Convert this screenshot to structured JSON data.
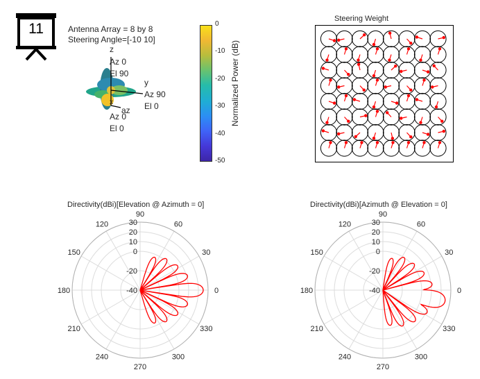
{
  "badge": {
    "number": "11"
  },
  "array_info": {
    "line1": "Antenna Array = 8 by 8",
    "line2": "Steering Angle=[-10 10]"
  },
  "pattern3d": {
    "z_label": "z",
    "z_az": "Az 0",
    "z_el": "El 90",
    "y_label": "y",
    "y_az": "Az 90",
    "y_el": "El 0",
    "x_label": "x",
    "x_az": "Az 0",
    "x_el": "El 0",
    "az_label": "az"
  },
  "colorbar": {
    "label": "Normalized Power (dB)",
    "ticks": [
      "0",
      "-10",
      "-20",
      "-30",
      "-40",
      "-50"
    ],
    "colors": [
      "#3d26a8",
      "#4538d8",
      "#3f63f7",
      "#2c8ef4",
      "#1fadd5",
      "#26bcaa",
      "#69c26f",
      "#b7bd3d",
      "#f0b833",
      "#f9e01a"
    ]
  },
  "steering": {
    "title": "Steering Weight",
    "rows": 8,
    "cols": 8,
    "circle_color": "#000000",
    "vector_color": "#ff0000"
  },
  "chart_data": [
    {
      "type": "polar",
      "title": "Directivity(dBi)[Elevation @ Azimuth = 0]",
      "angle_ticks": [
        "0",
        "30",
        "60",
        "90",
        "120",
        "150",
        "180",
        "210",
        "240",
        "270",
        "300",
        "330"
      ],
      "radial_ticks": [
        "-40",
        "-20",
        "0",
        "10",
        "20",
        "30"
      ],
      "rlim": [
        -40,
        30
      ],
      "grid": true,
      "series": [
        {
          "color": "#ff0000",
          "angle_range": [
            -90,
            90
          ],
          "lobes": [
            {
              "center": 0,
              "width": 9,
              "peak": 25
            },
            {
              "center": 17,
              "width": 8,
              "peak": 11
            },
            {
              "center": 33,
              "width": 8,
              "peak": 6
            },
            {
              "center": 50,
              "width": 8,
              "peak": 2
            },
            {
              "center": 66,
              "width": 8,
              "peak": -3
            },
            {
              "center": -17,
              "width": 8,
              "peak": 11
            },
            {
              "center": -33,
              "width": 8,
              "peak": 6
            },
            {
              "center": -50,
              "width": 8,
              "peak": 2
            },
            {
              "center": -66,
              "width": 8,
              "peak": -3
            }
          ]
        }
      ]
    },
    {
      "type": "polar",
      "title": "Directivity(dBi)[Azimuth @ Elevation = 0]",
      "angle_ticks": [
        "0",
        "30",
        "60",
        "90",
        "120",
        "150",
        "180",
        "210",
        "240",
        "270",
        "300",
        "330"
      ],
      "radial_ticks": [
        "-40",
        "-20",
        "0",
        "10",
        "20",
        "30"
      ],
      "rlim": [
        -40,
        30
      ],
      "grid": true,
      "series": [
        {
          "color": "#ff0000",
          "angle_range": [
            -90,
            90
          ],
          "lobes": [
            {
              "center": -10,
              "width": 11,
              "peak": 25
            },
            {
              "center": 7,
              "width": 8,
              "peak": 11
            },
            {
              "center": 23,
              "width": 8,
              "peak": 6
            },
            {
              "center": 40,
              "width": 8,
              "peak": 2
            },
            {
              "center": 57,
              "width": 8,
              "peak": 0
            },
            {
              "center": 74,
              "width": 8,
              "peak": -6
            },
            {
              "center": -27,
              "width": 8,
              "peak": 11
            },
            {
              "center": -44,
              "width": 8,
              "peak": 6
            },
            {
              "center": -61,
              "width": 8,
              "peak": 2
            },
            {
              "center": -78,
              "width": 8,
              "peak": -3
            }
          ]
        }
      ]
    }
  ]
}
